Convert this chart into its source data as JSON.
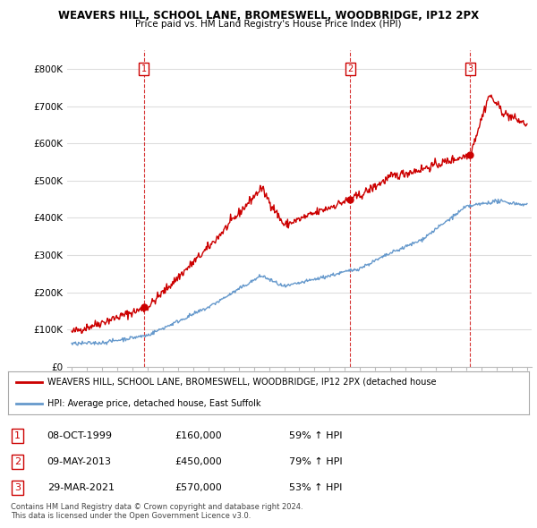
{
  "title": "WEAVERS HILL, SCHOOL LANE, BROMESWELL, WOODBRIDGE, IP12 2PX",
  "subtitle": "Price paid vs. HM Land Registry's House Price Index (HPI)",
  "ylim": [
    0,
    850000
  ],
  "yticks": [
    0,
    100000,
    200000,
    300000,
    400000,
    500000,
    600000,
    700000,
    800000
  ],
  "ytick_labels": [
    "£0",
    "£100K",
    "£200K",
    "£300K",
    "£400K",
    "£500K",
    "£600K",
    "£700K",
    "£800K"
  ],
  "sale_dates": [
    1999.77,
    2013.35,
    2021.24
  ],
  "sale_prices": [
    160000,
    450000,
    570000
  ],
  "sale_labels": [
    "1",
    "2",
    "3"
  ],
  "legend_red": "WEAVERS HILL, SCHOOL LANE, BROMESWELL, WOODBRIDGE, IP12 2PX (detached house",
  "legend_blue": "HPI: Average price, detached house, East Suffolk",
  "table_rows": [
    {
      "num": "1",
      "date": "08-OCT-1999",
      "price": "£160,000",
      "hpi": "59% ↑ HPI"
    },
    {
      "num": "2",
      "date": "09-MAY-2013",
      "price": "£450,000",
      "hpi": "79% ↑ HPI"
    },
    {
      "num": "3",
      "date": "29-MAR-2021",
      "price": "£570,000",
      "hpi": "53% ↑ HPI"
    }
  ],
  "footer": "Contains HM Land Registry data © Crown copyright and database right 2024.\nThis data is licensed under the Open Government Licence v3.0.",
  "red_color": "#cc0000",
  "blue_color": "#6699cc",
  "grid_color": "#dddddd",
  "bg_color": "#ffffff"
}
